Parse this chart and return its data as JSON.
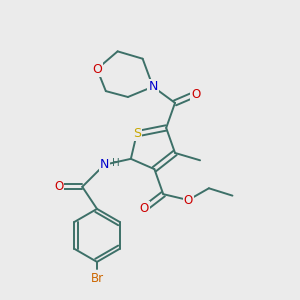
{
  "bg_color": "#ebebeb",
  "bond_color": "#3d7068",
  "atom_colors": {
    "S": "#c8a800",
    "N": "#0000cc",
    "O": "#cc0000",
    "Br": "#cc6600",
    "C": "#3d7068"
  }
}
